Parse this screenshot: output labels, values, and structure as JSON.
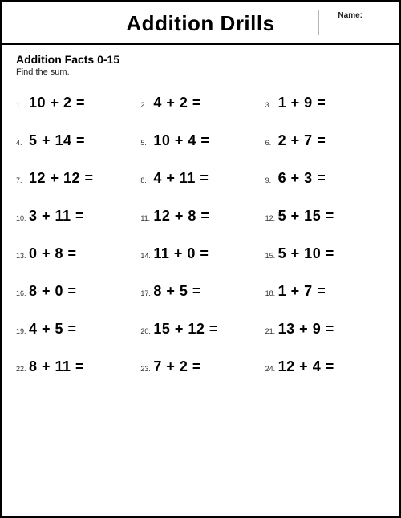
{
  "header": {
    "title": "Addition Drills",
    "name_label": "Name:"
  },
  "worksheet": {
    "subtitle": "Addition Facts 0-15",
    "instructions": "Find the sum."
  },
  "problems": [
    {
      "n": "1.",
      "a": 10,
      "b": 2
    },
    {
      "n": "2.",
      "a": 4,
      "b": 2
    },
    {
      "n": "3.",
      "a": 1,
      "b": 9
    },
    {
      "n": "4.",
      "a": 5,
      "b": 14
    },
    {
      "n": "5.",
      "a": 10,
      "b": 4
    },
    {
      "n": "6.",
      "a": 2,
      "b": 7
    },
    {
      "n": "7.",
      "a": 12,
      "b": 12
    },
    {
      "n": "8.",
      "a": 4,
      "b": 11
    },
    {
      "n": "9.",
      "a": 6,
      "b": 3
    },
    {
      "n": "10.",
      "a": 3,
      "b": 11
    },
    {
      "n": "11.",
      "a": 12,
      "b": 8
    },
    {
      "n": "12.",
      "a": 5,
      "b": 15
    },
    {
      "n": "13.",
      "a": 0,
      "b": 8
    },
    {
      "n": "14.",
      "a": 11,
      "b": 0
    },
    {
      "n": "15.",
      "a": 5,
      "b": 10
    },
    {
      "n": "16.",
      "a": 8,
      "b": 0
    },
    {
      "n": "17.",
      "a": 8,
      "b": 5
    },
    {
      "n": "18.",
      "a": 1,
      "b": 7
    },
    {
      "n": "19.",
      "a": 4,
      "b": 5
    },
    {
      "n": "20.",
      "a": 15,
      "b": 12
    },
    {
      "n": "21.",
      "a": 13,
      "b": 9
    },
    {
      "n": "22.",
      "a": 8,
      "b": 11
    },
    {
      "n": "23.",
      "a": 7,
      "b": 2
    },
    {
      "n": "24.",
      "a": 12,
      "b": 4
    }
  ],
  "style": {
    "page_border_color": "#000000",
    "background_color": "#ffffff",
    "title_fontsize": 26,
    "subtitle_fontsize": 14,
    "instructions_fontsize": 11,
    "problem_number_fontsize": 9,
    "expression_fontsize": 18,
    "expression_fontweight": 600,
    "columns": 3,
    "rows": 8,
    "operator": "+",
    "equals": "="
  }
}
